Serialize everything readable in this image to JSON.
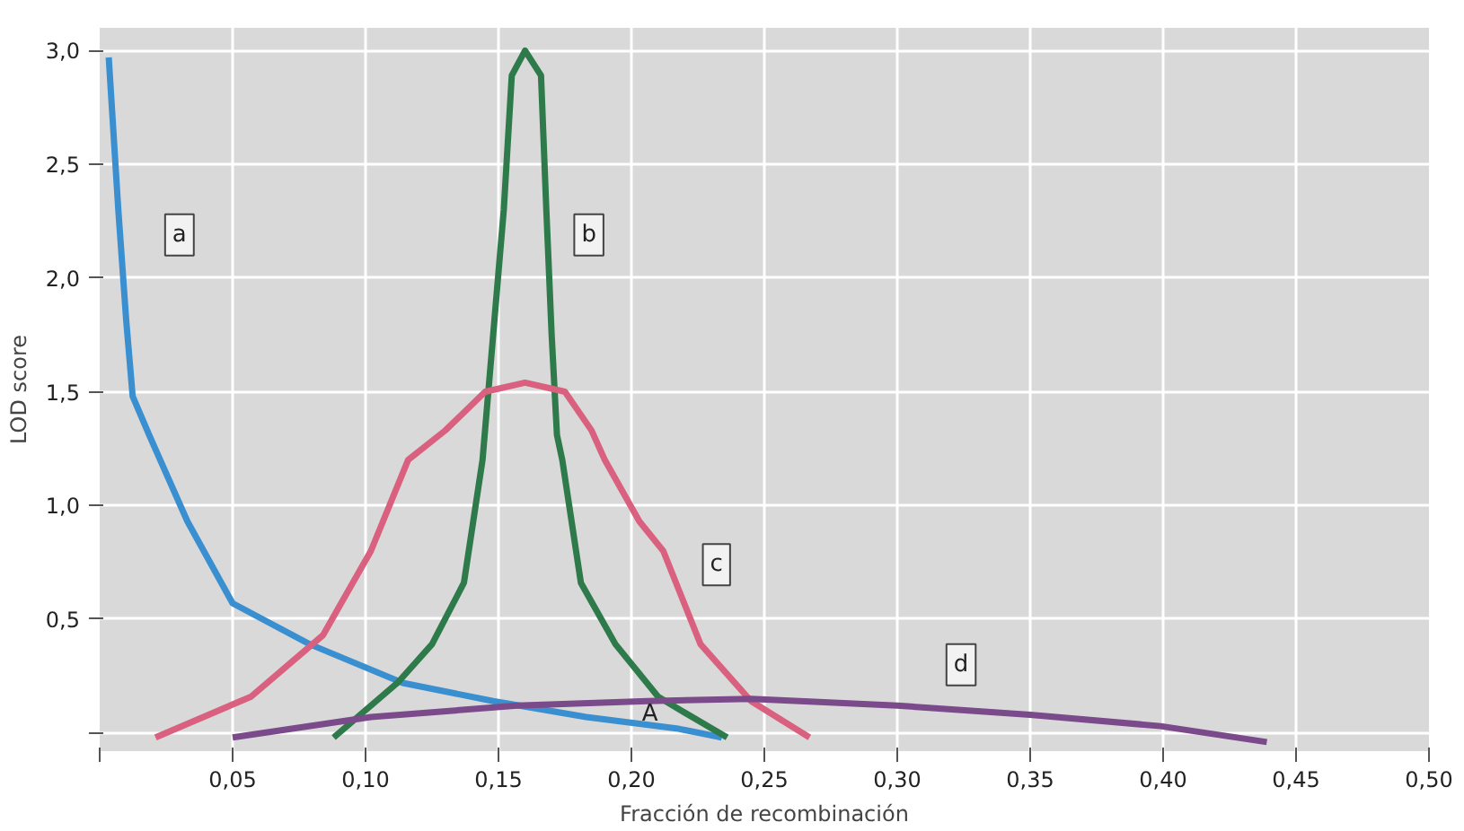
{
  "chart_data": {
    "type": "line",
    "xlabel": "Fracción de recombinación",
    "ylabel": "LOD score",
    "xlim": [
      0,
      0.5
    ],
    "ylim": [
      -0.08,
      3.1
    ],
    "xticks": [
      {
        "value": 0,
        "label": null
      },
      {
        "value": 0.05,
        "label": "0,05"
      },
      {
        "value": 0.1,
        "label": "0,10"
      },
      {
        "value": 0.15,
        "label": "0,15"
      },
      {
        "value": 0.2,
        "label": "0,20"
      },
      {
        "value": 0.25,
        "label": "0,25"
      },
      {
        "value": 0.3,
        "label": "0,30"
      },
      {
        "value": 0.35,
        "label": "0,35"
      },
      {
        "value": 0.4,
        "label": "0,40"
      },
      {
        "value": 0.45,
        "label": "0,45"
      },
      {
        "value": 0.5,
        "label": "0,50"
      }
    ],
    "yticks": [
      {
        "value": 0,
        "label": null
      },
      {
        "value": 0.5,
        "label": "0,5"
      },
      {
        "value": 1,
        "label": "1,0"
      },
      {
        "value": 1.5,
        "label": "1,5"
      },
      {
        "value": 2,
        "label": "2,0"
      },
      {
        "value": 2.5,
        "label": "2,5"
      },
      {
        "value": 3,
        "label": "3,0"
      }
    ],
    "grid": true,
    "line_style": "solid",
    "series": [
      {
        "color": "#3a8fd0",
        "x": [
          0.0034,
          0.007,
          0.01,
          0.0124,
          0.0186,
          0.033,
          0.05,
          0.079,
          0.114,
          0.148,
          0.183,
          0.217,
          0.234
        ],
        "values": [
          2.97,
          2.3,
          1.81,
          1.48,
          1.31,
          0.93,
          0.57,
          0.39,
          0.22,
          0.14,
          0.07,
          0.02,
          -0.02
        ]
      },
      {
        "color": "#2e7a4a",
        "x": [
          0.088,
          0.112,
          0.125,
          0.137,
          0.144,
          0.148,
          0.152,
          0.155,
          0.16,
          0.166,
          0.168,
          0.17,
          0.172,
          0.174,
          0.181,
          0.194,
          0.21,
          0.217,
          0.236
        ],
        "values": [
          -0.02,
          0.22,
          0.39,
          0.66,
          1.2,
          1.75,
          2.3,
          2.89,
          3.0,
          2.89,
          2.3,
          1.75,
          1.31,
          1.2,
          0.66,
          0.39,
          0.16,
          0.11,
          -0.02
        ]
      },
      {
        "color": "#d9607e",
        "x": [
          0.021,
          0.057,
          0.084,
          0.102,
          0.116,
          0.13,
          0.145,
          0.16,
          0.175,
          0.185,
          0.19,
          0.203,
          0.212,
          0.226,
          0.245,
          0.267
        ],
        "values": [
          -0.02,
          0.16,
          0.43,
          0.8,
          1.2,
          1.33,
          1.5,
          1.54,
          1.5,
          1.33,
          1.2,
          0.93,
          0.8,
          0.39,
          0.14,
          -0.02
        ]
      },
      {
        "color": "#7a4a8a",
        "x": [
          0.05,
          0.102,
          0.157,
          0.206,
          0.245,
          0.3,
          0.35,
          0.399,
          0.439
        ],
        "values": [
          -0.02,
          0.07,
          0.12,
          0.14,
          0.15,
          0.12,
          0.08,
          0.03,
          -0.04
        ]
      }
    ],
    "annotations": [
      {
        "text": "a",
        "x": 0.03,
        "y": 2.19
      },
      {
        "text": "b",
        "x": 0.184,
        "y": 2.19
      },
      {
        "text": "c",
        "x": 0.232,
        "y": 0.74
      },
      {
        "text": "d",
        "x": 0.324,
        "y": 0.3
      },
      {
        "text": "A",
        "x": 0.207,
        "y": 0.08
      }
    ]
  }
}
